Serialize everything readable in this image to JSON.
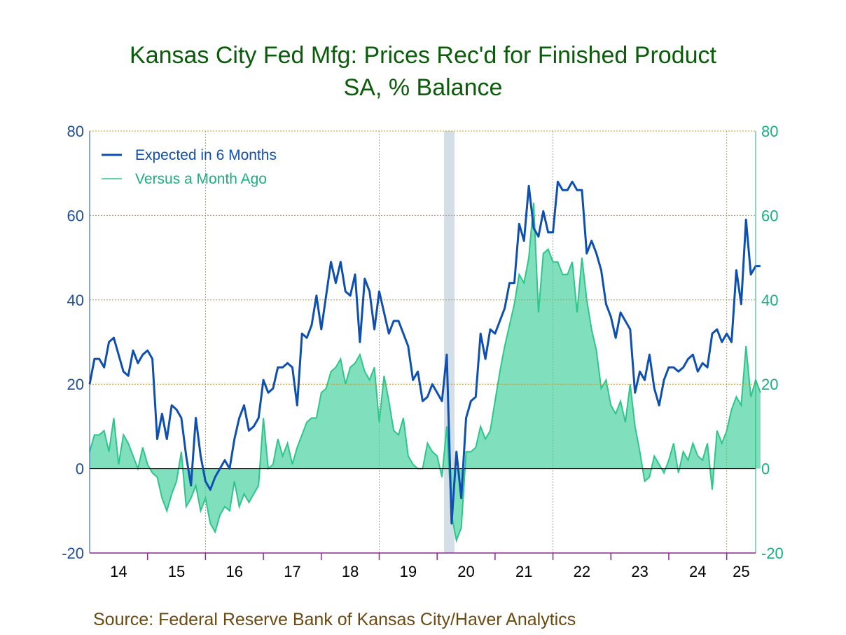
{
  "chart_data": {
    "type": "area",
    "title": "Kansas City Fed Mfg: Prices Rec'd for Finished Product",
    "subtitle": "SA, % Balance",
    "source": "Source:  Federal Reserve Bank of Kansas City/Haver Analytics",
    "ylim": [
      -20,
      80
    ],
    "y_ticks": [
      "80",
      "60",
      "40",
      "20",
      "0",
      "-20"
    ],
    "y_tick_values": [
      80,
      60,
      40,
      20,
      0,
      -20
    ],
    "x_ticks": [
      "14",
      "15",
      "16",
      "17",
      "18",
      "19",
      "20",
      "21",
      "22",
      "23",
      "24",
      "25"
    ],
    "x_start": 2014.0,
    "x_end": 2025.5,
    "grid": true,
    "legend_position": "top-left",
    "recession_shading": [
      [
        2020.12,
        2020.3
      ]
    ],
    "colors": {
      "title": "#0a5c0a",
      "left_axis": "#1e4fa3",
      "right_axis": "#1aaf80",
      "expected_line": "#0f4fb0",
      "area_fill": "#80e0bd",
      "area_edge": "#2ec58b",
      "grid": "#d6962a",
      "recession": "#d3dee6",
      "source": "#6b4a12"
    },
    "series": [
      {
        "name": "Expected in 6 Months",
        "style": "line",
        "axis": "left",
        "start": 2014.0,
        "step_months": 1,
        "values": [
          20,
          26,
          26,
          24,
          30,
          31,
          27,
          23,
          22,
          28,
          25,
          27,
          28,
          26,
          7,
          13,
          7,
          15,
          14,
          12,
          3,
          -4,
          12,
          3,
          -3,
          -5,
          -2,
          0,
          2,
          0,
          7,
          12,
          15,
          9,
          10,
          12,
          21,
          18,
          19,
          24,
          24,
          25,
          24,
          15,
          32,
          31,
          34,
          41,
          33,
          41,
          49,
          44,
          49,
          42,
          41,
          46,
          30,
          45,
          42,
          33,
          42,
          37,
          32,
          35,
          35,
          32,
          29,
          21,
          23,
          16,
          17,
          20,
          18,
          16,
          27,
          -13,
          4,
          -7,
          12,
          16,
          17,
          32,
          26,
          33,
          32,
          35,
          38,
          44,
          44,
          58,
          54,
          67,
          57,
          55,
          61,
          56,
          56,
          68,
          66,
          66,
          68,
          66,
          66,
          51,
          54,
          51,
          47,
          39,
          36,
          31,
          37,
          35,
          33,
          18,
          23,
          21,
          27,
          19,
          15,
          21,
          24,
          24,
          23,
          24,
          26,
          27,
          23,
          25,
          24,
          32,
          33,
          30,
          32,
          30,
          47,
          39,
          59,
          46,
          48,
          48
        ]
      },
      {
        "name": "Versus a Month Ago",
        "style": "area",
        "axis": "right",
        "start": 2014.0,
        "step_months": 1,
        "values": [
          4,
          8,
          8,
          9,
          4,
          12,
          1,
          8,
          6,
          3,
          0,
          5,
          1,
          -1,
          -2,
          -7,
          -10,
          -6,
          -3,
          4,
          -9,
          -7,
          -4,
          -10,
          -7,
          -13,
          -15,
          -11,
          -9,
          -10,
          -3,
          -9,
          -6,
          -8,
          -6,
          -4,
          12,
          0,
          1,
          7,
          3,
          6,
          1,
          5,
          8,
          11,
          12,
          12,
          18,
          19,
          23,
          24,
          26,
          20,
          24,
          25,
          27,
          23,
          21,
          24,
          11,
          22,
          16,
          9,
          8,
          12,
          3,
          1,
          0,
          0,
          6,
          4,
          3,
          -2,
          10,
          -11,
          -17,
          -14,
          4,
          4,
          5,
          10,
          7,
          9,
          16,
          23,
          29,
          34,
          39,
          46,
          44,
          50,
          63,
          37,
          51,
          52,
          49,
          49,
          46,
          46,
          49,
          37,
          50,
          40,
          33,
          28,
          19,
          21,
          15,
          13,
          16,
          11,
          20,
          10,
          4,
          -3,
          -2,
          3,
          1,
          -1,
          2,
          6,
          -1,
          4,
          2,
          6,
          3,
          2,
          6,
          -5,
          9,
          6,
          9,
          14,
          17,
          15,
          29,
          17,
          21,
          18
        ]
      }
    ]
  }
}
